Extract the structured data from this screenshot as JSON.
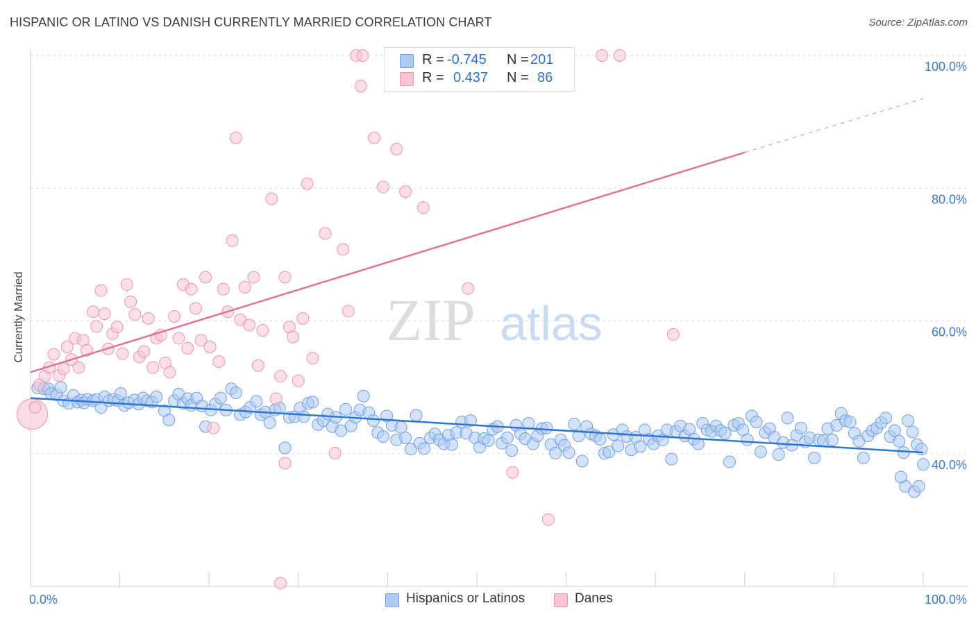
{
  "title": "HISPANIC OR LATINO VS DANISH CURRENTLY MARRIED CORRELATION CHART",
  "source": "Source: ZipAtlas.com",
  "watermark": {
    "zip": "ZIP",
    "atlas": "atlas"
  },
  "legend": {
    "series1": {
      "r_label": "R =",
      "r_value": "-0.745",
      "n_label": "N =",
      "n_value": "201"
    },
    "series2": {
      "r_label": "R =",
      "r_value": "0.437",
      "n_label": "N =",
      "n_value": "86"
    }
  },
  "bottom_legend": {
    "series1": "Hispanics or Latinos",
    "series2": "Danes"
  },
  "colors": {
    "blue_fill": "#aecbf3",
    "blue_stroke": "#6f9fe0",
    "blue_line": "#2f74d0",
    "pink_fill": "#f7c4d4",
    "pink_stroke": "#ee93b1",
    "pink_line": "#e2709a",
    "tick_text": "#3b78d0",
    "grid": "#dddddd"
  },
  "chart_data": {
    "type": "scatter",
    "title": "HISPANIC OR LATINO VS DANISH CURRENTLY MARRIED CORRELATION CHART",
    "xlabel": "",
    "ylabel": "Currently Married",
    "xlim": [
      0,
      100
    ],
    "ylim": [
      18.5,
      101
    ],
    "x_tick_labels": [
      "0.0%",
      "100.0%"
    ],
    "y_ticks": [
      40,
      60,
      80,
      100
    ],
    "y_tick_labels": [
      "40.0%",
      "60.0%",
      "80.0%",
      "100.0%"
    ],
    "grid": true,
    "legend_placement": "top-center",
    "series": [
      {
        "name": "Hispanics or Latinos",
        "R": -0.745,
        "N": 201,
        "trend": {
          "x": [
            0,
            100
          ],
          "y": [
            48.4,
            40.2
          ]
        },
        "points": [
          [
            0.8,
            49.9
          ],
          [
            1.5,
            49.8
          ],
          [
            2.0,
            49.8
          ],
          [
            2.3,
            49.1
          ],
          [
            2.9,
            48.9
          ],
          [
            3.4,
            50.0
          ],
          [
            3.7,
            48.0
          ],
          [
            4.3,
            47.6
          ],
          [
            4.8,
            48.8
          ],
          [
            5.3,
            47.8
          ],
          [
            5.7,
            48.1
          ],
          [
            6.0,
            47.7
          ],
          [
            6.4,
            48.2
          ],
          [
            7.0,
            48.0
          ],
          [
            7.4,
            48.2
          ],
          [
            7.9,
            47.0
          ],
          [
            8.3,
            48.6
          ],
          [
            8.8,
            48.0
          ],
          [
            9.3,
            48.2
          ],
          [
            9.8,
            48.0
          ],
          [
            10.1,
            49.1
          ],
          [
            10.5,
            47.3
          ],
          [
            11.0,
            47.7
          ],
          [
            11.6,
            48.1
          ],
          [
            12.1,
            47.5
          ],
          [
            12.6,
            48.4
          ],
          [
            13.1,
            48.0
          ],
          [
            13.6,
            47.8
          ],
          [
            14.1,
            48.6
          ],
          [
            15.0,
            46.5
          ],
          [
            15.5,
            45.1
          ],
          [
            16.1,
            48.0
          ],
          [
            16.6,
            49.0
          ],
          [
            17.1,
            47.6
          ],
          [
            17.6,
            48.3
          ],
          [
            18.0,
            47.3
          ],
          [
            18.6,
            48.4
          ],
          [
            19.2,
            47.2
          ],
          [
            19.6,
            44.1
          ],
          [
            20.2,
            46.6
          ],
          [
            20.7,
            47.5
          ],
          [
            21.3,
            48.4
          ],
          [
            21.9,
            46.6
          ],
          [
            22.5,
            49.8
          ],
          [
            23.0,
            49.2
          ],
          [
            23.5,
            45.9
          ],
          [
            24.1,
            46.3
          ],
          [
            24.6,
            47.0
          ],
          [
            25.3,
            47.9
          ],
          [
            25.8,
            45.9
          ],
          [
            26.3,
            46.3
          ],
          [
            26.8,
            44.7
          ],
          [
            27.4,
            46.6
          ],
          [
            27.9,
            46.9
          ],
          [
            28.5,
            40.9
          ],
          [
            29.0,
            45.5
          ],
          [
            29.6,
            45.6
          ],
          [
            30.2,
            46.9
          ],
          [
            30.6,
            45.6
          ],
          [
            31.1,
            47.6
          ],
          [
            31.6,
            47.8
          ],
          [
            32.2,
            44.4
          ],
          [
            32.8,
            45.0
          ],
          [
            33.3,
            46.0
          ],
          [
            33.8,
            44.1
          ],
          [
            34.2,
            45.5
          ],
          [
            34.8,
            43.5
          ],
          [
            35.3,
            46.7
          ],
          [
            35.9,
            44.2
          ],
          [
            36.4,
            45.5
          ],
          [
            36.9,
            46.6
          ],
          [
            37.3,
            48.7
          ],
          [
            37.9,
            46.2
          ],
          [
            38.4,
            45.0
          ],
          [
            38.9,
            43.2
          ],
          [
            39.5,
            42.6
          ],
          [
            39.9,
            45.7
          ],
          [
            40.5,
            44.3
          ],
          [
            41.0,
            42.1
          ],
          [
            41.5,
            44.0
          ],
          [
            42.0,
            42.4
          ],
          [
            42.6,
            40.7
          ],
          [
            43.2,
            45.8
          ],
          [
            43.6,
            41.6
          ],
          [
            44.1,
            40.8
          ],
          [
            44.8,
            42.4
          ],
          [
            45.3,
            43.0
          ],
          [
            45.8,
            42.1
          ],
          [
            46.3,
            41.5
          ],
          [
            46.8,
            42.8
          ],
          [
            47.2,
            41.4
          ],
          [
            47.7,
            43.2
          ],
          [
            48.3,
            44.8
          ],
          [
            48.8,
            43.1
          ],
          [
            49.3,
            45.0
          ],
          [
            49.8,
            42.4
          ],
          [
            50.3,
            41.0
          ],
          [
            50.8,
            42.3
          ],
          [
            51.3,
            42.0
          ],
          [
            51.8,
            43.7
          ],
          [
            52.3,
            44.1
          ],
          [
            52.8,
            41.6
          ],
          [
            53.4,
            42.4
          ],
          [
            53.9,
            40.5
          ],
          [
            54.4,
            44.3
          ],
          [
            54.9,
            43.0
          ],
          [
            55.4,
            42.3
          ],
          [
            55.8,
            44.6
          ],
          [
            56.3,
            41.5
          ],
          [
            56.8,
            42.7
          ],
          [
            57.3,
            43.8
          ],
          [
            57.8,
            43.9
          ],
          [
            58.3,
            41.4
          ],
          [
            58.8,
            40.1
          ],
          [
            59.4,
            42.1
          ],
          [
            59.8,
            41.3
          ],
          [
            60.3,
            40.2
          ],
          [
            60.9,
            44.5
          ],
          [
            61.4,
            42.7
          ],
          [
            61.8,
            38.9
          ],
          [
            62.3,
            44.1
          ],
          [
            62.8,
            43.0
          ],
          [
            63.3,
            42.7
          ],
          [
            63.8,
            42.2
          ],
          [
            64.3,
            40.1
          ],
          [
            64.8,
            40.3
          ],
          [
            65.3,
            42.9
          ],
          [
            65.8,
            41.2
          ],
          [
            66.3,
            43.6
          ],
          [
            66.8,
            42.6
          ],
          [
            67.3,
            40.6
          ],
          [
            67.8,
            42.5
          ],
          [
            68.3,
            41.1
          ],
          [
            68.8,
            43.6
          ],
          [
            69.3,
            42.2
          ],
          [
            69.8,
            41.5
          ],
          [
            70.3,
            42.7
          ],
          [
            70.8,
            42.1
          ],
          [
            71.3,
            43.6
          ],
          [
            71.8,
            39.2
          ],
          [
            72.3,
            43.4
          ],
          [
            72.8,
            44.2
          ],
          [
            73.3,
            42.7
          ],
          [
            73.8,
            43.7
          ],
          [
            74.3,
            42.2
          ],
          [
            74.8,
            41.5
          ],
          [
            75.3,
            44.6
          ],
          [
            75.8,
            43.6
          ],
          [
            76.3,
            43.4
          ],
          [
            76.8,
            44.2
          ],
          [
            77.3,
            43.5
          ],
          [
            77.8,
            43.1
          ],
          [
            78.3,
            38.8
          ],
          [
            78.8,
            44.3
          ],
          [
            79.3,
            44.6
          ],
          [
            79.8,
            43.6
          ],
          [
            80.3,
            42.1
          ],
          [
            80.8,
            45.7
          ],
          [
            81.3,
            44.8
          ],
          [
            81.8,
            40.3
          ],
          [
            82.3,
            43.2
          ],
          [
            82.8,
            43.8
          ],
          [
            83.3,
            42.5
          ],
          [
            83.8,
            39.9
          ],
          [
            84.3,
            41.7
          ],
          [
            84.8,
            45.4
          ],
          [
            85.3,
            41.3
          ],
          [
            85.8,
            42.8
          ],
          [
            86.3,
            43.9
          ],
          [
            86.8,
            41.8
          ],
          [
            87.3,
            42.4
          ],
          [
            87.8,
            39.4
          ],
          [
            88.3,
            42.1
          ],
          [
            88.8,
            42.0
          ],
          [
            89.3,
            43.8
          ],
          [
            89.8,
            42.1
          ],
          [
            90.3,
            44.3
          ],
          [
            90.8,
            46.1
          ],
          [
            91.3,
            45.0
          ],
          [
            91.8,
            44.8
          ],
          [
            92.3,
            43.1
          ],
          [
            92.8,
            41.9
          ],
          [
            93.3,
            39.4
          ],
          [
            93.8,
            42.7
          ],
          [
            94.3,
            43.5
          ],
          [
            94.8,
            43.9
          ],
          [
            95.3,
            44.7
          ],
          [
            95.8,
            45.4
          ],
          [
            96.3,
            42.6
          ],
          [
            96.8,
            43.5
          ],
          [
            97.3,
            41.9
          ],
          [
            97.8,
            40.2
          ],
          [
            98.3,
            45.0
          ],
          [
            98.8,
            43.3
          ],
          [
            99.3,
            41.4
          ],
          [
            99.8,
            40.7
          ],
          [
            100.0,
            38.4
          ],
          [
            98.0,
            35.1
          ],
          [
            99.0,
            34.3
          ],
          [
            99.5,
            35.1
          ],
          [
            97.5,
            36.5
          ]
        ]
      },
      {
        "name": "Danes",
        "R": 0.437,
        "N": 86,
        "trend": {
          "x": [
            0,
            80
          ],
          "y": [
            52.3,
            85.4
          ]
        },
        "trend_dashed": {
          "x": [
            80,
            100
          ],
          "y": [
            85.4,
            93.5
          ]
        },
        "points": [
          [
            0.5,
            47.0
          ],
          [
            1.0,
            50.4
          ],
          [
            1.6,
            51.7
          ],
          [
            2.1,
            53.0
          ],
          [
            2.6,
            55.0
          ],
          [
            3.2,
            51.8
          ],
          [
            3.7,
            52.8
          ],
          [
            4.1,
            56.1
          ],
          [
            4.6,
            54.2
          ],
          [
            5.0,
            57.4
          ],
          [
            5.4,
            53.0
          ],
          [
            5.9,
            57.1
          ],
          [
            6.3,
            55.6
          ],
          [
            7.0,
            61.4
          ],
          [
            7.4,
            59.2
          ],
          [
            7.9,
            64.6
          ],
          [
            8.3,
            61.1
          ],
          [
            8.7,
            55.8
          ],
          [
            9.2,
            58.1
          ],
          [
            9.7,
            59.1
          ],
          [
            10.3,
            55.1
          ],
          [
            10.8,
            65.5
          ],
          [
            11.2,
            62.9
          ],
          [
            11.7,
            61.0
          ],
          [
            12.2,
            54.6
          ],
          [
            12.7,
            55.4
          ],
          [
            13.2,
            60.4
          ],
          [
            13.7,
            53.0
          ],
          [
            14.1,
            57.4
          ],
          [
            14.6,
            57.9
          ],
          [
            15.1,
            53.7
          ],
          [
            15.6,
            52.3
          ],
          [
            16.1,
            60.7
          ],
          [
            16.6,
            57.4
          ],
          [
            17.1,
            65.5
          ],
          [
            17.6,
            55.9
          ],
          [
            18.0,
            64.8
          ],
          [
            18.5,
            61.9
          ],
          [
            19.1,
            57.1
          ],
          [
            19.6,
            66.6
          ],
          [
            20.1,
            56.1
          ],
          [
            20.5,
            43.9
          ],
          [
            21.1,
            53.9
          ],
          [
            21.6,
            64.8
          ],
          [
            22.1,
            61.4
          ],
          [
            22.6,
            72.1
          ],
          [
            23.0,
            87.6
          ],
          [
            23.5,
            60.2
          ],
          [
            24.0,
            65.1
          ],
          [
            24.5,
            59.4
          ],
          [
            25.0,
            66.6
          ],
          [
            25.5,
            53.3
          ],
          [
            26.0,
            58.6
          ],
          [
            27.0,
            78.4
          ],
          [
            27.5,
            48.3
          ],
          [
            28.0,
            51.7
          ],
          [
            28.5,
            66.6
          ],
          [
            29.0,
            59.1
          ],
          [
            29.4,
            57.6
          ],
          [
            30.0,
            51.0
          ],
          [
            30.5,
            60.4
          ],
          [
            31.0,
            80.7
          ],
          [
            31.6,
            54.4
          ],
          [
            33.0,
            73.2
          ],
          [
            34.1,
            40.1
          ],
          [
            35.0,
            70.8
          ],
          [
            35.6,
            61.5
          ],
          [
            36.5,
            100.0
          ],
          [
            37.2,
            100.0
          ],
          [
            38.5,
            87.6
          ],
          [
            39.5,
            80.2
          ],
          [
            41.0,
            85.9
          ],
          [
            42.0,
            79.5
          ],
          [
            43.0,
            100.0
          ],
          [
            44.0,
            77.1
          ],
          [
            48.0,
            100.0
          ],
          [
            49.0,
            64.9
          ],
          [
            50.5,
            100.0
          ],
          [
            54.0,
            37.2
          ],
          [
            58.0,
            30.1
          ],
          [
            64.0,
            100.0
          ],
          [
            66.0,
            100.0
          ],
          [
            72.0,
            58.0
          ],
          [
            37.0,
            95.4
          ],
          [
            28.5,
            38.6
          ],
          [
            28.0,
            20.5
          ]
        ],
        "large_point": [
          0.5,
          46.0
        ]
      }
    ]
  }
}
